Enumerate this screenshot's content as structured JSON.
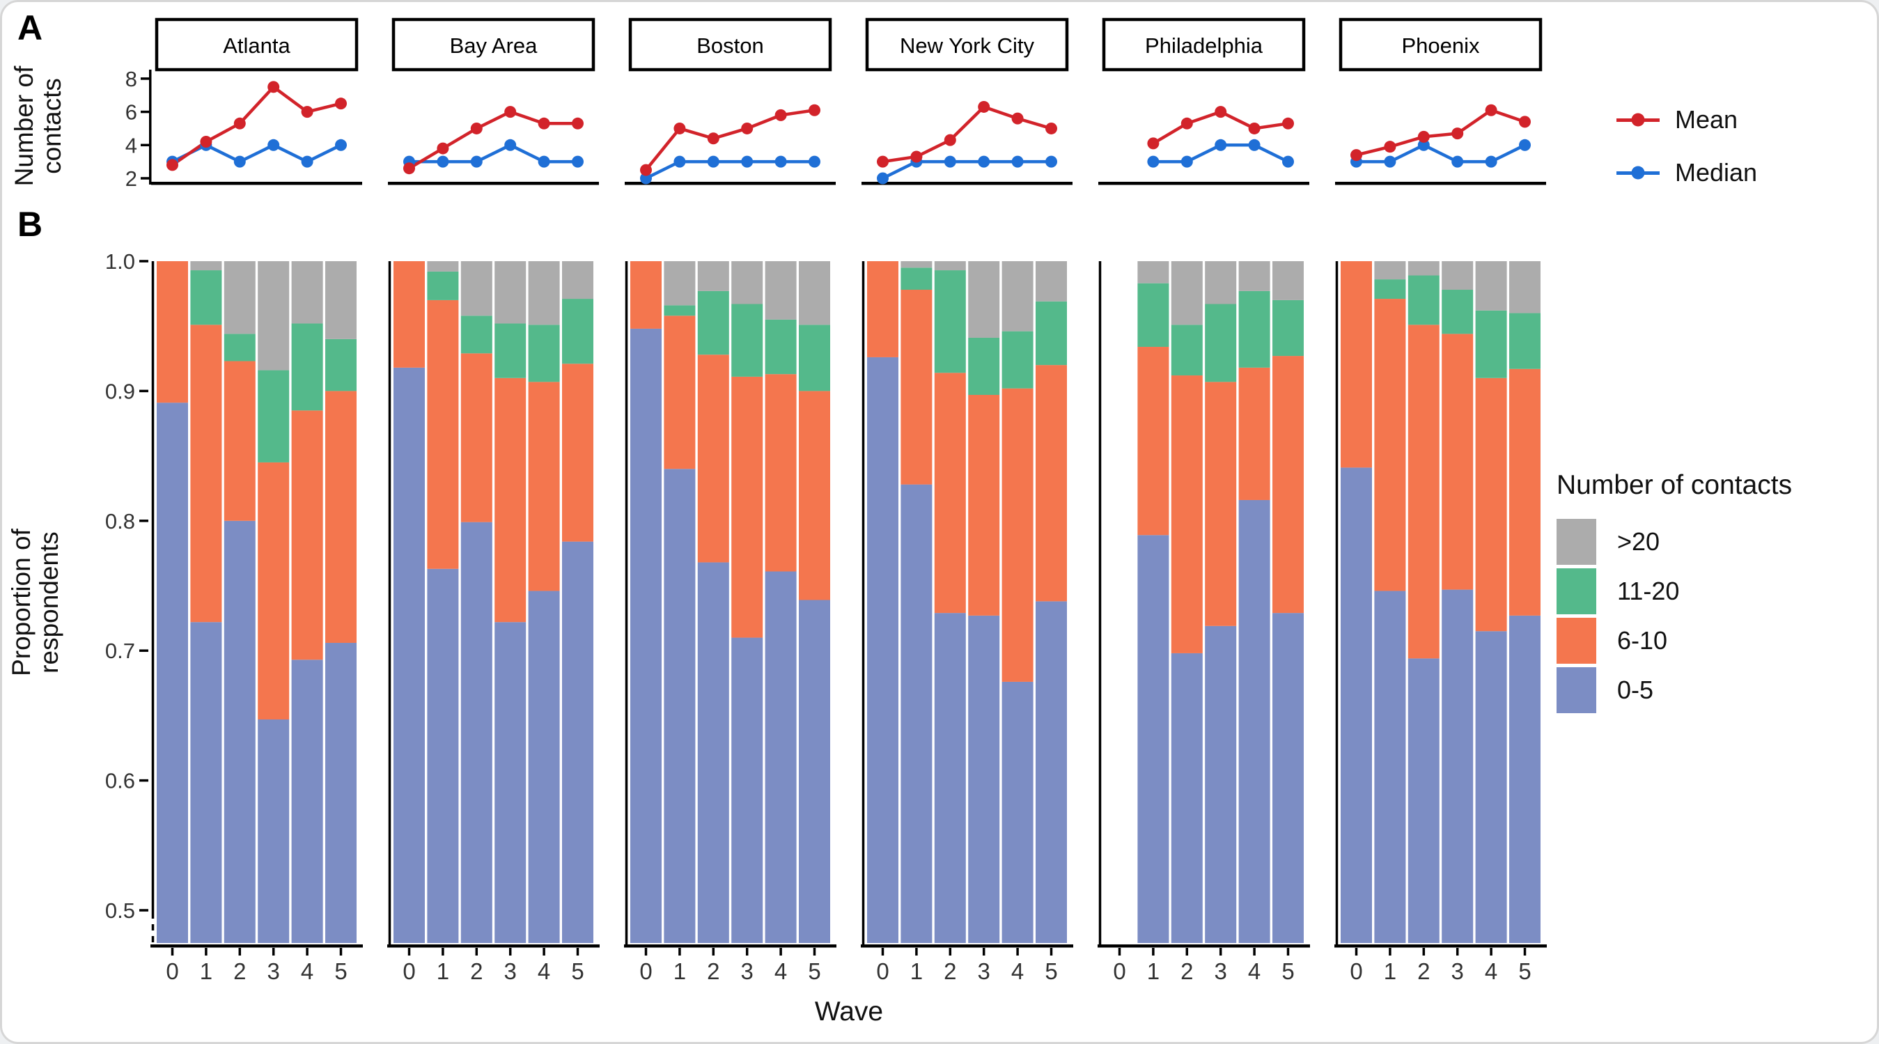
{
  "figure": {
    "panel_a_label": "A",
    "panel_b_label": "B",
    "ylabel_a_line1": "Number of",
    "ylabel_a_line2": "contacts",
    "ylabel_b_line1": "Proportion of",
    "ylabel_b_line2": "respondents",
    "wave_axis_label": "Wave"
  },
  "legend_a": {
    "items": [
      {
        "label": "Mean",
        "color": "#D2232A"
      },
      {
        "label": "Median",
        "color": "#1F6FD6"
      }
    ]
  },
  "legend_b": {
    "title": "Number of contacts",
    "items": [
      {
        "label": ">20",
        "color": "#ACACAC"
      },
      {
        "label": "11-20",
        "color": "#54B98B"
      },
      {
        "label": "6-10",
        "color": "#F4764E"
      },
      {
        "label": "0-5",
        "color": "#7C8DC4"
      }
    ]
  },
  "chart_data": [
    {
      "type": "line",
      "panel": "A",
      "ylabel": "Number of contacts",
      "x_values": [
        0,
        1,
        2,
        3,
        4,
        5
      ],
      "yticks": [
        8,
        6,
        4,
        2
      ],
      "ylim": [
        1.6,
        10.2
      ],
      "grid": false,
      "legend_position": "right",
      "series_colors": {
        "mean": "#D2232A",
        "median": "#1F6FD6"
      },
      "facets": [
        {
          "city": "Atlanta",
          "mean": [
            2.8,
            4.2,
            5.3,
            7.5,
            6.0,
            6.5
          ],
          "median": [
            3,
            4,
            3,
            4,
            3,
            4
          ]
        },
        {
          "city": "Bay Area",
          "mean": [
            2.6,
            3.8,
            5.0,
            6.0,
            5.3,
            5.3
          ],
          "median": [
            3,
            3,
            3,
            4,
            3,
            3
          ]
        },
        {
          "city": "Boston",
          "mean": [
            2.5,
            5.0,
            4.4,
            5.0,
            5.8,
            6.1
          ],
          "median": [
            2,
            3,
            3,
            3,
            3,
            3
          ]
        },
        {
          "city": "New York City",
          "mean": [
            3.0,
            3.3,
            4.3,
            6.3,
            5.6,
            5.0
          ],
          "median": [
            2,
            3,
            3,
            3,
            3,
            3
          ]
        },
        {
          "city": "Philadelphia",
          "mean": [
            null,
            4.1,
            5.3,
            6.0,
            5.0,
            5.3
          ],
          "median": [
            null,
            3,
            3,
            4,
            4,
            3
          ]
        },
        {
          "city": "Phoenix",
          "mean": [
            3.4,
            3.9,
            4.5,
            4.7,
            6.1,
            5.4
          ],
          "median": [
            3,
            3,
            4,
            3,
            3,
            4
          ]
        }
      ]
    },
    {
      "type": "bar",
      "panel": "B",
      "stacked": true,
      "ylabel": "Proportion of respondents",
      "xlabel": "Wave",
      "x_values": [
        0,
        1,
        2,
        3,
        4,
        5
      ],
      "yticks": [
        1.0,
        0.9,
        0.8,
        0.7,
        0.6,
        0.5
      ],
      "ylim": [
        0.475,
        1.0
      ],
      "axis_break_below": 0.5,
      "grid": false,
      "legend_position": "right",
      "stack_order": [
        "0-5",
        "6-10",
        "11-20",
        ">20"
      ],
      "colors": {
        "0-5": "#7C8DC4",
        "6-10": "#F4764E",
        "11-20": "#54B98B",
        ">20": "#ACACAC"
      },
      "note": "cumulative_tops = cumulative proportion at top of 0-5, 6-10 and 11-20 segments; >20 fills to 1.0; null = no data for that wave",
      "facets": [
        {
          "city": "Atlanta",
          "cumulative_tops": [
            [
              0.891,
              1.0,
              1.0
            ],
            [
              0.722,
              0.951,
              0.993
            ],
            [
              0.8,
              0.923,
              0.944
            ],
            [
              0.647,
              0.845,
              0.916
            ],
            [
              0.693,
              0.885,
              0.952
            ],
            [
              0.706,
              0.9,
              0.94
            ]
          ]
        },
        {
          "city": "Bay Area",
          "cumulative_tops": [
            [
              0.918,
              1.0,
              1.0
            ],
            [
              0.763,
              0.97,
              0.992
            ],
            [
              0.799,
              0.929,
              0.958
            ],
            [
              0.722,
              0.91,
              0.952
            ],
            [
              0.746,
              0.907,
              0.951
            ],
            [
              0.784,
              0.921,
              0.971
            ]
          ]
        },
        {
          "city": "Boston",
          "cumulative_tops": [
            [
              0.948,
              1.0,
              1.0
            ],
            [
              0.84,
              0.958,
              0.966
            ],
            [
              0.768,
              0.928,
              0.977
            ],
            [
              0.71,
              0.911,
              0.967
            ],
            [
              0.761,
              0.913,
              0.955
            ],
            [
              0.739,
              0.9,
              0.951
            ]
          ]
        },
        {
          "city": "New York City",
          "cumulative_tops": [
            [
              0.926,
              1.0,
              1.0
            ],
            [
              0.828,
              0.978,
              0.995
            ],
            [
              0.729,
              0.914,
              0.993
            ],
            [
              0.727,
              0.897,
              0.941
            ],
            [
              0.676,
              0.902,
              0.946
            ],
            [
              0.738,
              0.92,
              0.969
            ]
          ]
        },
        {
          "city": "Philadelphia",
          "cumulative_tops": [
            null,
            [
              0.789,
              0.934,
              0.983
            ],
            [
              0.698,
              0.912,
              0.951
            ],
            [
              0.719,
              0.907,
              0.967
            ],
            [
              0.816,
              0.918,
              0.977
            ],
            [
              0.729,
              0.927,
              0.97
            ]
          ]
        },
        {
          "city": "Phoenix",
          "cumulative_tops": [
            [
              0.841,
              1.0,
              1.0
            ],
            [
              0.746,
              0.971,
              0.986
            ],
            [
              0.694,
              0.951,
              0.989
            ],
            [
              0.747,
              0.944,
              0.978
            ],
            [
              0.715,
              0.91,
              0.962
            ],
            [
              0.727,
              0.917,
              0.96
            ]
          ]
        }
      ]
    }
  ]
}
